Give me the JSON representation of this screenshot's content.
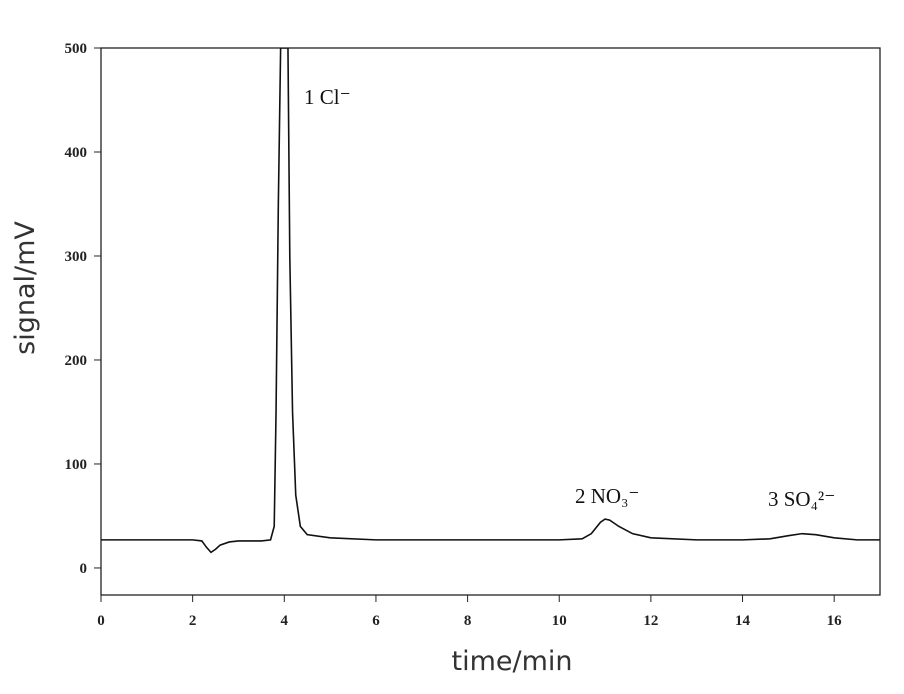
{
  "chart_data": {
    "type": "line",
    "x_label": "time/min",
    "y_label": "signal/mV",
    "xlim": [
      0,
      17
    ],
    "ylim": [
      -26,
      500
    ],
    "xticks": [
      0,
      2,
      4,
      6,
      8,
      10,
      12,
      14,
      16
    ],
    "yticks": [
      0,
      100,
      200,
      300,
      400,
      500
    ],
    "annotations": [
      "1 Cl⁻",
      "2 NO₃⁻",
      "3 SO₄²⁻"
    ],
    "x": [
      0,
      1,
      2,
      2.2,
      2.3,
      2.4,
      2.5,
      2.6,
      2.8,
      3.0,
      3.5,
      3.7,
      3.78,
      3.82,
      3.87,
      3.92,
      4.08,
      4.12,
      4.18,
      4.25,
      4.35,
      4.5,
      5,
      6,
      8,
      10,
      10.5,
      10.7,
      10.9,
      11.0,
      11.1,
      11.3,
      11.6,
      12,
      13,
      14,
      14.6,
      15.0,
      15.3,
      15.6,
      16,
      16.5,
      17
    ],
    "series": [
      {
        "color": "#111111",
        "values": [
          27,
          27,
          27,
          26,
          20,
          15,
          18,
          22,
          25,
          26,
          26,
          27,
          40,
          150,
          350,
          500,
          500,
          300,
          150,
          70,
          40,
          32,
          29,
          27,
          27,
          27,
          28,
          33,
          44,
          47,
          46,
          40,
          33,
          29,
          27,
          27,
          28,
          31,
          33,
          32,
          29,
          27,
          27
        ]
      }
    ]
  }
}
